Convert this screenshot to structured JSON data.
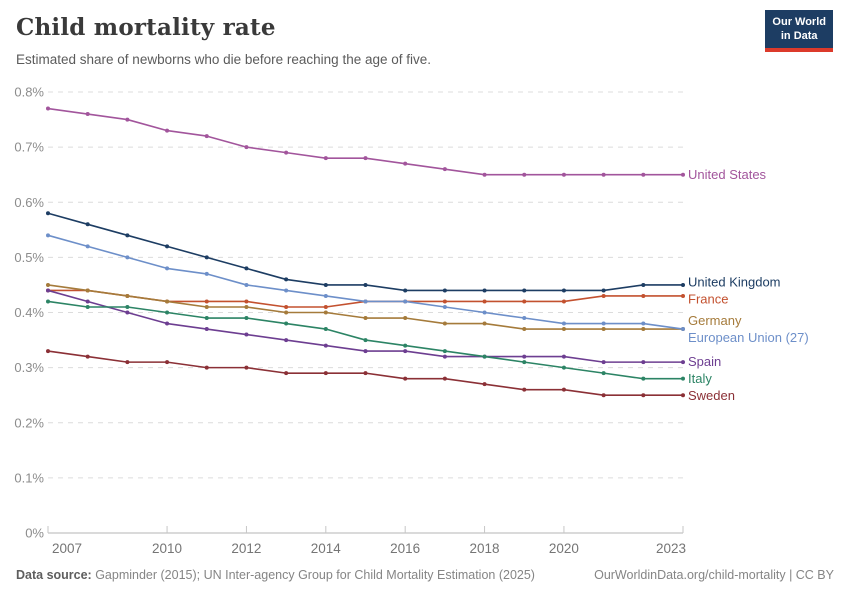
{
  "header": {
    "title": "Child mortality rate",
    "subtitle": "Estimated share of newborns who die before reaching the age of five.",
    "logo": {
      "line1": "Our World",
      "line2": "in Data"
    }
  },
  "footer": {
    "datasource_label": "Data source:",
    "datasource_text": " Gapminder (2015); UN Inter-agency Group for Child Mortality Estimation (2025)",
    "link_text": "OurWorldinData.org/child-mortality | CC BY"
  },
  "colors": {
    "logo_bg": "#1d3d63",
    "logo_red": "#dc3a2b",
    "gridline": "#dcdcdc",
    "axis_line": "#b5b5b5",
    "tick": "#c6c6c6",
    "y_tick_label": "#8c8c8c",
    "x_tick_label": "#757575"
  },
  "chart_data": {
    "type": "line",
    "title": "Child mortality rate",
    "subtitle": "Estimated share of newborns who die before reaching the age of five.",
    "xlabel": "",
    "ylabel": "",
    "x": [
      2007,
      2008,
      2009,
      2010,
      2011,
      2012,
      2013,
      2014,
      2015,
      2016,
      2017,
      2018,
      2019,
      2020,
      2021,
      2022,
      2023
    ],
    "x_ticks": [
      2007,
      2010,
      2012,
      2014,
      2016,
      2018,
      2020,
      2023
    ],
    "xlim": [
      2007,
      2023
    ],
    "ylim": [
      0,
      0.8
    ],
    "y_ticks": [
      0,
      0.1,
      0.2,
      0.3,
      0.4,
      0.5,
      0.6,
      0.7,
      0.8
    ],
    "y_tick_labels": [
      "0%",
      "0.1%",
      "0.2%",
      "0.3%",
      "0.4%",
      "0.5%",
      "0.6%",
      "0.7%",
      "0.8%"
    ],
    "grid": "dashed-horizontal",
    "legend_position": "right-end-labels",
    "unit": "%",
    "series": [
      {
        "name": "United States",
        "color": "#a2559c",
        "values": [
          0.77,
          0.76,
          0.75,
          0.73,
          0.72,
          0.7,
          0.69,
          0.68,
          0.68,
          0.67,
          0.66,
          0.65,
          0.65,
          0.65,
          0.65,
          0.65,
          0.65
        ]
      },
      {
        "name": "United Kingdom",
        "color": "#1d3d63",
        "values": [
          0.58,
          0.56,
          0.54,
          0.52,
          0.5,
          0.48,
          0.46,
          0.45,
          0.45,
          0.44,
          0.44,
          0.44,
          0.44,
          0.44,
          0.44,
          0.45,
          0.45
        ]
      },
      {
        "name": "France",
        "color": "#c3512f",
        "values": [
          0.44,
          0.44,
          0.43,
          0.42,
          0.42,
          0.42,
          0.41,
          0.41,
          0.42,
          0.42,
          0.42,
          0.42,
          0.42,
          0.42,
          0.43,
          0.43,
          0.43
        ]
      },
      {
        "name": "Germany",
        "color": "#a57b3b",
        "values": [
          0.45,
          0.44,
          0.43,
          0.42,
          0.41,
          0.41,
          0.4,
          0.4,
          0.39,
          0.39,
          0.38,
          0.38,
          0.37,
          0.37,
          0.37,
          0.37,
          0.37
        ]
      },
      {
        "name": "European Union (27)",
        "color": "#6d8fc9",
        "values": [
          0.54,
          0.52,
          0.5,
          0.48,
          0.47,
          0.45,
          0.44,
          0.43,
          0.42,
          0.42,
          0.41,
          0.4,
          0.39,
          0.38,
          0.38,
          0.38,
          0.37
        ]
      },
      {
        "name": "Spain",
        "color": "#6d3e91",
        "values": [
          0.44,
          0.42,
          0.4,
          0.38,
          0.37,
          0.36,
          0.35,
          0.34,
          0.33,
          0.33,
          0.32,
          0.32,
          0.32,
          0.32,
          0.31,
          0.31,
          0.31
        ]
      },
      {
        "name": "Italy",
        "color": "#2c8465",
        "values": [
          0.42,
          0.41,
          0.41,
          0.4,
          0.39,
          0.39,
          0.38,
          0.37,
          0.35,
          0.34,
          0.33,
          0.32,
          0.31,
          0.3,
          0.29,
          0.28,
          0.28
        ]
      },
      {
        "name": "Sweden",
        "color": "#8b3036",
        "values": [
          0.33,
          0.32,
          0.31,
          0.31,
          0.3,
          0.3,
          0.29,
          0.29,
          0.29,
          0.28,
          0.28,
          0.27,
          0.26,
          0.26,
          0.25,
          0.25,
          0.25
        ]
      }
    ]
  }
}
